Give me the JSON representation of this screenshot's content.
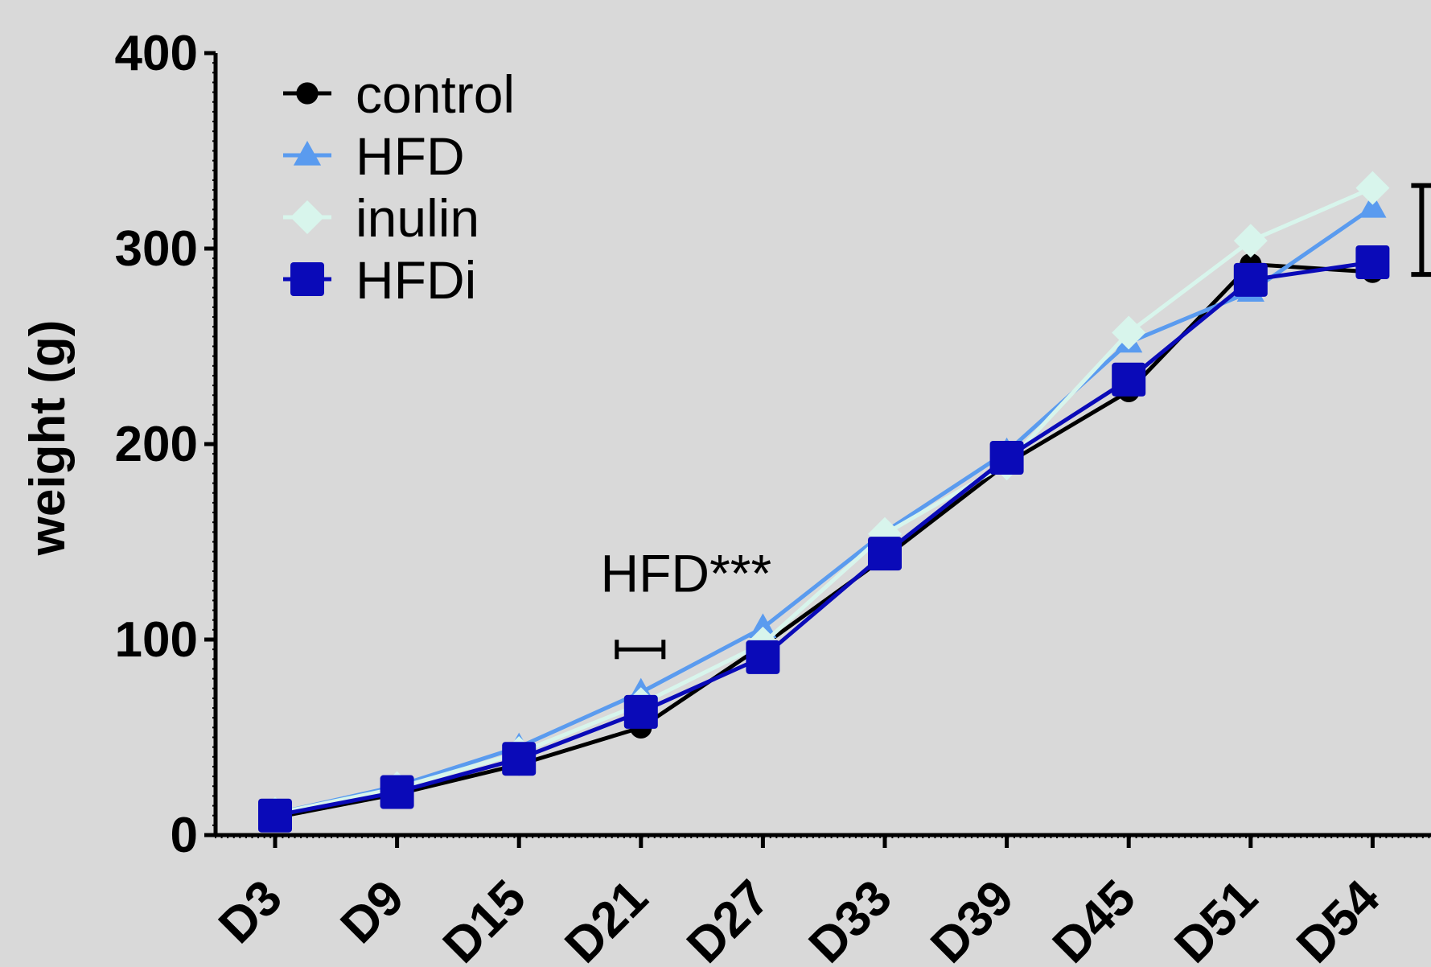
{
  "chart_data": {
    "type": "line",
    "title": "",
    "xlabel": "",
    "ylabel": "weight (g)",
    "ylim": [
      0,
      400
    ],
    "yticks": [
      0,
      100,
      200,
      300,
      400
    ],
    "categories": [
      "D3",
      "D9",
      "D15",
      "D21",
      "D27",
      "D33",
      "D39",
      "D45",
      "D51",
      "D54"
    ],
    "grid": false,
    "legend_position": "top-left",
    "series": [
      {
        "name": "control",
        "marker": "circle",
        "color": "#000000",
        "values": [
          9,
          21,
          36,
          55,
          97,
          142,
          190,
          227,
          292,
          288
        ]
      },
      {
        "name": "HFD",
        "marker": "triangle",
        "color": "#5a9bef",
        "values": [
          11,
          25,
          45,
          73,
          106,
          155,
          196,
          252,
          278,
          321
        ]
      },
      {
        "name": "inulin",
        "marker": "diamond",
        "color": "#d8f5ec",
        "values": [
          11,
          24,
          42,
          67,
          98,
          154,
          190,
          257,
          304,
          331
        ]
      },
      {
        "name": "HFDi",
        "marker": "square",
        "color": "#0a0ab8",
        "values": [
          10,
          22,
          39,
          63,
          91,
          144,
          193,
          233,
          284,
          293
        ]
      }
    ],
    "annotations": [
      {
        "text": "HFD***",
        "category": "D21",
        "y": 125
      }
    ],
    "bracket": {
      "category": "D54",
      "y_low": 288,
      "y_high": 331
    }
  }
}
